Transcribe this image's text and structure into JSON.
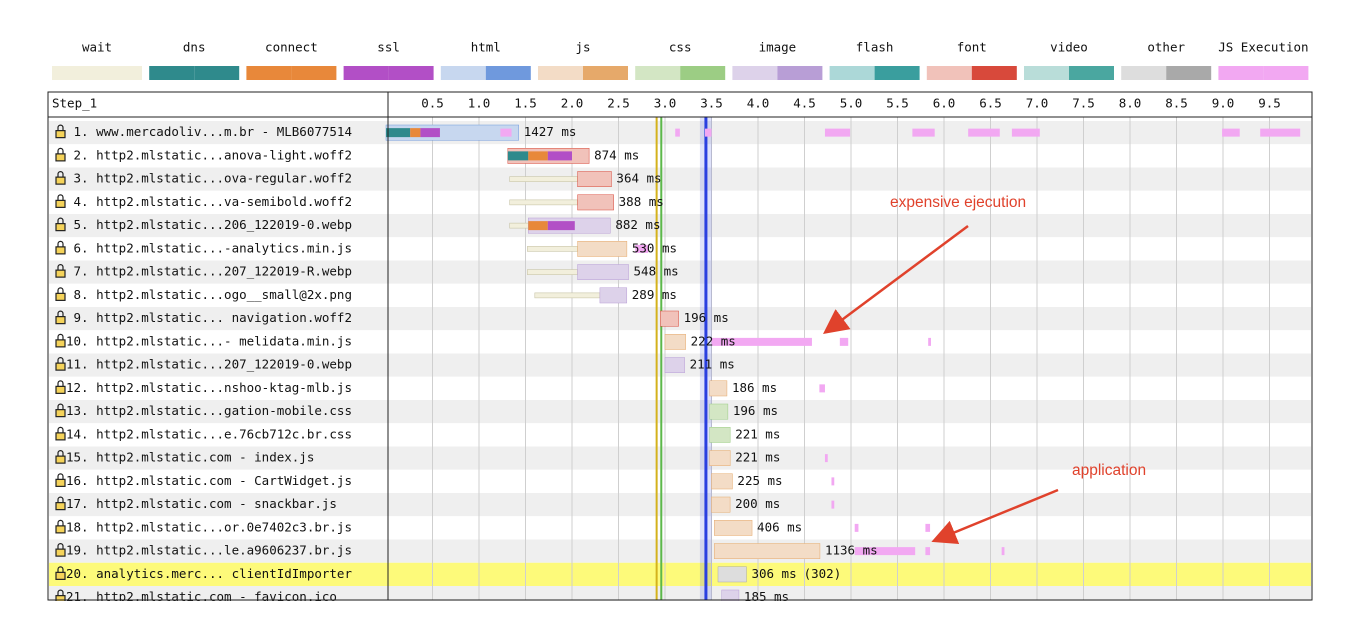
{
  "chart_data": {
    "type": "waterfall",
    "header": "Step_1",
    "legend": [
      {
        "name": "wait",
        "colors": [
          "#f2efdc",
          "#f2efdc"
        ]
      },
      {
        "name": "dns",
        "colors": [
          "#2f8a8c",
          "#2f8a8c"
        ]
      },
      {
        "name": "connect",
        "colors": [
          "#e8883a",
          "#e8883a"
        ]
      },
      {
        "name": "ssl",
        "colors": [
          "#b24fc6",
          "#b24fc6"
        ]
      },
      {
        "name": "html",
        "colors": [
          "#c7d7ef",
          "#6f99dd"
        ]
      },
      {
        "name": "js",
        "colors": [
          "#f3dcc6",
          "#e6a96a"
        ]
      },
      {
        "name": "css",
        "colors": [
          "#d3e6c4",
          "#9ccd84"
        ]
      },
      {
        "name": "image",
        "colors": [
          "#ddd2ea",
          "#b89ed6"
        ]
      },
      {
        "name": "flash",
        "colors": [
          "#acd8d8",
          "#3a9e9e"
        ]
      },
      {
        "name": "font",
        "colors": [
          "#f1c2ba",
          "#d8493b"
        ]
      },
      {
        "name": "video",
        "colors": [
          "#b9ddd9",
          "#4aa7a0"
        ]
      },
      {
        "name": "other",
        "colors": [
          "#dddddd",
          "#a9a9a9"
        ]
      },
      {
        "name": "JS Execution",
        "colors": [
          "#f2a8f2",
          "#f2a8f2"
        ]
      }
    ],
    "xlim": [
      0,
      10
    ],
    "xticks": [
      0.5,
      {
        "value": 1,
        "label": "1.0"
      },
      1.5,
      {
        "value": 2,
        "label": "2.0"
      },
      2.5,
      {
        "value": 3,
        "label": "3.0"
      },
      3.5,
      {
        "value": 4,
        "label": "4.0"
      },
      4.5,
      {
        "value": 5,
        "label": "5.0"
      },
      5.5,
      {
        "value": 6,
        "label": "6.0"
      },
      6.5,
      {
        "value": 7,
        "label": "7.0"
      },
      7.5,
      {
        "value": 8,
        "label": "8.0"
      },
      8.5,
      {
        "value": 9,
        "label": "9.0"
      },
      9.5
    ],
    "grid": true,
    "markers": [
      {
        "time": 2.91,
        "color": "#d4b21c"
      },
      {
        "time": 2.96,
        "color": "#5cb84a"
      },
      {
        "time": 3.44,
        "color": "#2a3fe0"
      }
    ],
    "requests": [
      {
        "label": " 1. www.mercadoliv...m.br - MLB6077514",
        "kind": "html",
        "start": 0,
        "duration": 1.427,
        "duration_label": "1427 ms",
        "phases": [
          {
            "phase": "dns",
            "start": 0,
            "end": 0.26
          },
          {
            "phase": "connect",
            "start": 0.26,
            "end": 0.37
          },
          {
            "phase": "ssl",
            "start": 0.37,
            "end": 0.58
          }
        ],
        "js_execution": [
          [
            1.23,
            1.35
          ],
          [
            3.11,
            3.16
          ],
          [
            3.43,
            3.5
          ],
          [
            4.72,
            4.99
          ],
          [
            5.66,
            5.9
          ],
          [
            6.26,
            6.6
          ],
          [
            6.73,
            7.03
          ],
          [
            8.99,
            9.18
          ],
          [
            9.4,
            9.83
          ]
        ]
      },
      {
        "label": " 2. http2.mlstatic...anova-light.woff2",
        "kind": "font",
        "start": 1.31,
        "duration": 0.874,
        "duration_label": "874 ms",
        "phases": [
          {
            "phase": "dns",
            "start": 1.31,
            "end": 1.53
          },
          {
            "phase": "connect",
            "start": 1.53,
            "end": 1.74
          },
          {
            "phase": "ssl",
            "start": 1.74,
            "end": 2.0
          }
        ]
      },
      {
        "label": " 3. http2.mlstatic...ova-regular.woff2",
        "kind": "font",
        "wait": 1.33,
        "start": 2.06,
        "duration": 0.364,
        "duration_label": "364 ms"
      },
      {
        "label": " 4. http2.mlstatic...va-semibold.woff2",
        "kind": "font",
        "wait": 1.33,
        "start": 2.06,
        "duration": 0.388,
        "duration_label": "388 ms"
      },
      {
        "label": " 5. http2.mlstatic...206_122019-0.webp",
        "kind": "image",
        "wait": 1.33,
        "start": 1.53,
        "duration": 0.882,
        "duration_label": "882 ms",
        "phases": [
          {
            "phase": "connect",
            "start": 1.53,
            "end": 1.74
          },
          {
            "phase": "ssl",
            "start": 1.74,
            "end": 2.03
          }
        ]
      },
      {
        "label": " 6. http2.mlstatic...-analytics.min.js",
        "kind": "js",
        "wait": 1.52,
        "start": 2.06,
        "duration": 0.53,
        "duration_label": "530 ms",
        "js_execution": [
          [
            2.68,
            2.82
          ]
        ]
      },
      {
        "label": " 7. http2.mlstatic...207_122019-R.webp",
        "kind": "image",
        "wait": 1.52,
        "start": 2.06,
        "duration": 0.548,
        "duration_label": "548 ms"
      },
      {
        "label": " 8. http2.mlstatic...ogo__small@2x.png",
        "kind": "image",
        "wait": 1.6,
        "start": 2.3,
        "duration": 0.289,
        "duration_label": "289 ms"
      },
      {
        "label": " 9. http2.mlstatic... navigation.woff2",
        "kind": "font",
        "start": 2.95,
        "duration": 0.196,
        "duration_label": "196 ms"
      },
      {
        "label": "10. http2.mlstatic...- melidata.min.js",
        "kind": "js",
        "start": 3.0,
        "duration": 0.222,
        "duration_label": "222 ms",
        "js_execution": [
          [
            3.5,
            4.58
          ],
          [
            4.88,
            4.97
          ],
          [
            5.83,
            5.86
          ]
        ]
      },
      {
        "label": "11. http2.mlstatic...207_122019-0.webp",
        "kind": "image",
        "start": 3.0,
        "duration": 0.211,
        "duration_label": "211 ms"
      },
      {
        "label": "12. http2.mlstatic...nshoo-ktag-mlb.js",
        "kind": "js",
        "start": 3.48,
        "duration": 0.186,
        "duration_label": "186 ms",
        "js_execution": [
          [
            4.66,
            4.72
          ]
        ]
      },
      {
        "label": "13. http2.mlstatic...gation-mobile.css",
        "kind": "css",
        "start": 3.48,
        "duration": 0.196,
        "duration_label": "196 ms"
      },
      {
        "label": "14. http2.mlstatic...e.76cb712c.br.css",
        "kind": "css",
        "start": 3.48,
        "duration": 0.221,
        "duration_label": "221 ms"
      },
      {
        "label": "15. http2.mlstatic.com - index.js",
        "kind": "js",
        "start": 3.48,
        "duration": 0.221,
        "duration_label": "221 ms",
        "js_execution": [
          [
            4.72,
            4.75
          ]
        ]
      },
      {
        "label": "16. http2.mlstatic.com - CartWidget.js",
        "kind": "js",
        "start": 3.5,
        "duration": 0.225,
        "duration_label": "225 ms",
        "js_execution": [
          [
            4.79,
            4.82
          ]
        ]
      },
      {
        "label": "17. http2.mlstatic.com - snackbar.js",
        "kind": "js",
        "start": 3.5,
        "duration": 0.2,
        "duration_label": "200 ms",
        "js_execution": [
          [
            4.79,
            4.82
          ]
        ]
      },
      {
        "label": "18. http2.mlstatic...or.0e7402c3.br.js",
        "kind": "js",
        "start": 3.53,
        "duration": 0.406,
        "duration_label": "406 ms",
        "js_execution": [
          [
            5.04,
            5.08
          ],
          [
            5.8,
            5.85
          ]
        ]
      },
      {
        "label": "19. http2.mlstatic...le.a9606237.br.js",
        "kind": "js",
        "start": 3.53,
        "duration": 1.136,
        "duration_label": "1136 ms",
        "js_execution": [
          [
            5.04,
            5.69
          ],
          [
            5.8,
            5.85
          ],
          [
            6.62,
            6.65
          ]
        ]
      },
      {
        "label": "20. analytics.merc... clientIdImporter",
        "kind": "other",
        "start": 3.57,
        "duration": 0.306,
        "duration_label": "306 ms",
        "status_label": "(302)",
        "highlight": true
      },
      {
        "label": "21. http2.mlstatic.com - favicon.ico",
        "kind": "image",
        "start": 3.61,
        "duration": 0.185,
        "duration_label": "185 ms"
      }
    ],
    "annotations": [
      "expensive ejecution",
      "application"
    ]
  }
}
